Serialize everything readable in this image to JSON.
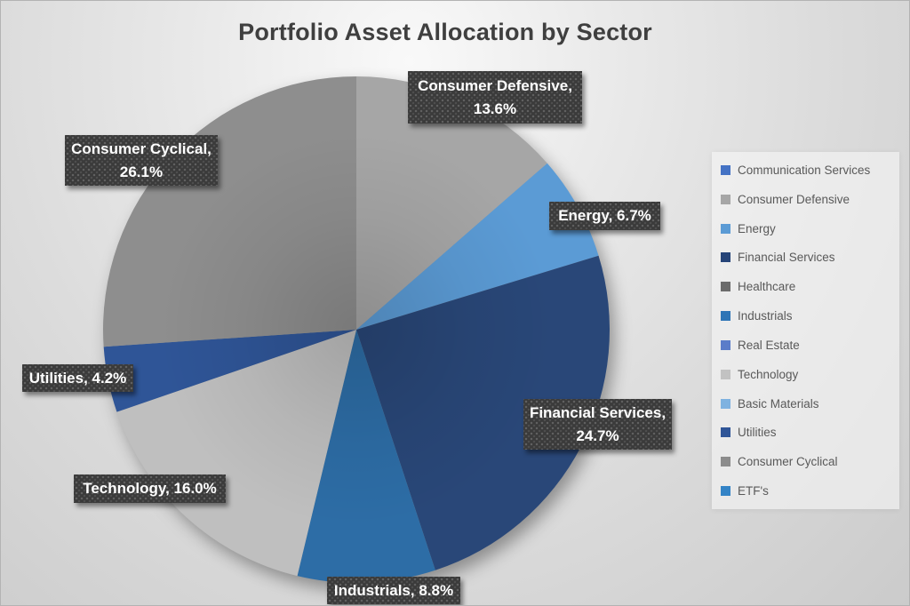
{
  "chart_data": {
    "type": "pie",
    "title": "Portfolio Asset Allocation by Sector",
    "direction": "clockwise",
    "start_angle_deg": 0,
    "legend_position": "right",
    "title_color": "#3f3f3f",
    "label_box_color": "#3a3a3a",
    "label_text_color": "#ffffff",
    "legend_text_color": "#595959",
    "slices": [
      {
        "label": "Consumer Defensive",
        "value": 13.6,
        "color": "#a6a6a6",
        "display_lines": [
          "Consumer Defensive,",
          "13.6%"
        ]
      },
      {
        "label": "Energy",
        "value": 6.7,
        "color": "#5b9bd5",
        "display_lines": [
          "Energy, 6.7%"
        ]
      },
      {
        "label": "Financial Services",
        "value": 24.7,
        "color": "#294778",
        "display_lines": [
          "Financial Services,",
          "24.7%"
        ]
      },
      {
        "label": "Industrials",
        "value": 8.8,
        "color": "#2d6da6",
        "display_lines": [
          "Industrials, 8.8%"
        ]
      },
      {
        "label": "Technology",
        "value": 16.0,
        "color": "#bfbfbf",
        "display_lines": [
          "Technology, 16.0%"
        ]
      },
      {
        "label": "Utilities",
        "value": 4.2,
        "color": "#2f5597",
        "display_lines": [
          "Utilities, 4.2%"
        ]
      },
      {
        "label": "Consumer Cyclical",
        "value": 26.1,
        "color": "#8e8e8e",
        "display_lines": [
          "Consumer Cyclical,",
          "26.1%"
        ]
      }
    ],
    "legend": [
      {
        "label": "Communication Services",
        "color": "#4472c4"
      },
      {
        "label": "Consumer Defensive",
        "color": "#a6a6a6"
      },
      {
        "label": "Energy",
        "color": "#5b9bd5"
      },
      {
        "label": "Financial Services",
        "color": "#264478"
      },
      {
        "label": "Healthcare",
        "color": "#6b6b6b"
      },
      {
        "label": "Industrials",
        "color": "#2e75b6"
      },
      {
        "label": "Real Estate",
        "color": "#5b7cc9"
      },
      {
        "label": "Technology",
        "color": "#c2c2c2"
      },
      {
        "label": "Basic Materials",
        "color": "#7fb2e0"
      },
      {
        "label": "Utilities",
        "color": "#2f5597"
      },
      {
        "label": "Consumer Cyclical",
        "color": "#8c8c8c"
      },
      {
        "label": "ETF's",
        "color": "#3383c6"
      }
    ]
  }
}
